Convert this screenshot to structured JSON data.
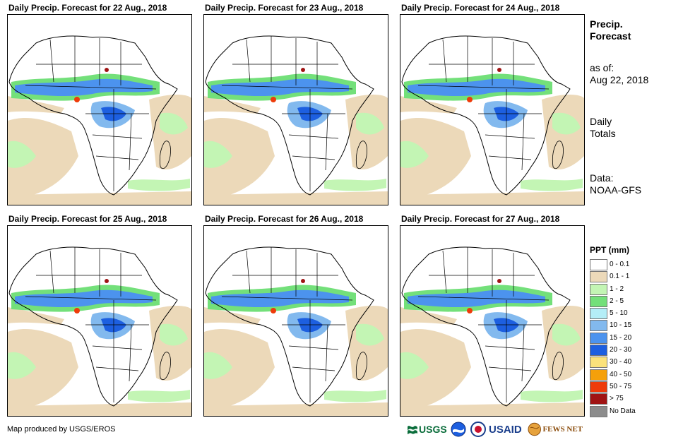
{
  "panels": [
    {
      "title": "Daily Precip. Forecast for 22 Aug., 2018"
    },
    {
      "title": "Daily Precip. Forecast for 23 Aug., 2018"
    },
    {
      "title": "Daily Precip. Forecast for 24 Aug., 2018"
    },
    {
      "title": "Daily Precip. Forecast for 25 Aug., 2018"
    },
    {
      "title": "Daily Precip. Forecast for 26 Aug., 2018"
    },
    {
      "title": "Daily Precip. Forecast for 27 Aug., 2018"
    }
  ],
  "sidebar": {
    "title": "Precip. Forecast",
    "as_of_label": "as of:",
    "as_of_date": "Aug 22, 2018",
    "totals": "Daily Totals",
    "data_source": "Data: NOAA-GFS"
  },
  "legend": {
    "title": "PPT (mm)",
    "items": [
      {
        "label": "0 - 0.1",
        "color": "#ffffff"
      },
      {
        "label": "0.1 - 1",
        "color": "#ecd9b9"
      },
      {
        "label": "1 - 2",
        "color": "#c3f5b4"
      },
      {
        "label": "2 - 5",
        "color": "#73e07a"
      },
      {
        "label": "5 - 10",
        "color": "#b4eef7"
      },
      {
        "label": "10 - 15",
        "color": "#82b9ee"
      },
      {
        "label": "15 - 20",
        "color": "#4c93ee"
      },
      {
        "label": "20 - 30",
        "color": "#1d5fe0"
      },
      {
        "label": "30 - 40",
        "color": "#fbe27b"
      },
      {
        "label": "40 - 50",
        "color": "#f5a00a"
      },
      {
        "label": "50 - 75",
        "color": "#ee3b0a"
      },
      {
        "label": "> 75",
        "color": "#a01414"
      },
      {
        "label": "No Data",
        "color": "#8c8c8c"
      }
    ]
  },
  "credit": "Map produced by USGS/EROS",
  "logos": {
    "usgs": "USGS",
    "usaid": "USAID",
    "fews": "FEWS NET"
  }
}
